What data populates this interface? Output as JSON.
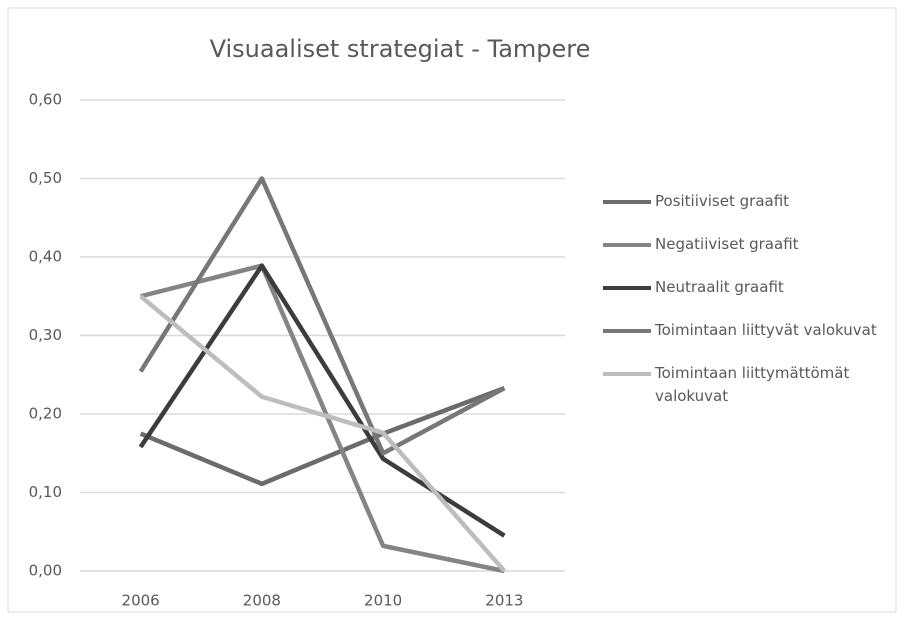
{
  "chart_data": {
    "type": "line",
    "title": "Visuaaliset strategiat - Tampere",
    "categories": [
      "2006",
      "2008",
      "2010",
      "2013"
    ],
    "series": [
      {
        "name": "Positiiviset graafit",
        "color": "#6b6b6b",
        "values": [
          0.175,
          0.111,
          0.175,
          0.233
        ]
      },
      {
        "name": "Negatiiviset graafit",
        "color": "#848484",
        "values": [
          0.35,
          0.389,
          0.032,
          0
        ]
      },
      {
        "name": "Neutraalit graafit",
        "color": "#3c3c3c",
        "values": [
          0.158,
          0.389,
          0.143,
          0.045
        ]
      },
      {
        "name": "Toimintaan liittyvät valokuvat",
        "color": "#777777",
        "values": [
          0.254,
          0.5,
          0.15,
          0.233
        ]
      },
      {
        "name": "Toimintaan liittymättömät valokuvat",
        "color": "#bdbdbd",
        "values": [
          0.35,
          0.222,
          0.176,
          0
        ]
      }
    ],
    "ylim": [
      0,
      0.6
    ],
    "yticks": [
      {
        "value": 0,
        "label": "0,00"
      },
      {
        "value": 0.1,
        "label": "0,10"
      },
      {
        "value": 0.2,
        "label": "0,20"
      },
      {
        "value": 0.3,
        "label": "0,30"
      },
      {
        "value": 0.4,
        "label": "0,40"
      },
      {
        "value": 0.5,
        "label": "0,50"
      },
      {
        "value": 0.6,
        "label": "0,60"
      }
    ],
    "grid": true,
    "legend": "right"
  }
}
